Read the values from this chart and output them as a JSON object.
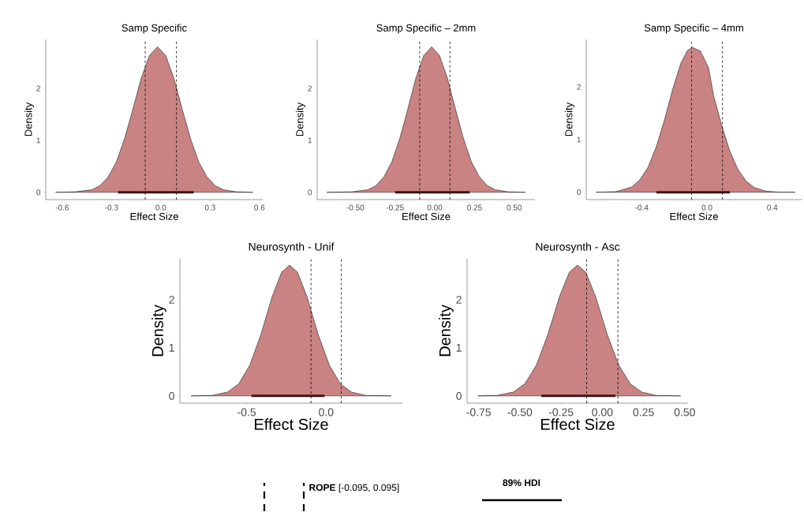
{
  "chart_data": [
    {
      "type": "area",
      "title": "Samp Specific",
      "xlabel": "Effect Size",
      "ylabel": "Density",
      "xlim": [
        -0.7,
        0.62
      ],
      "ylim": [
        -0.14,
        2.94
      ],
      "xticks": [
        {
          "value": -0.6,
          "label": "-0.6"
        },
        {
          "value": -0.3,
          "label": "-0.3"
        },
        {
          "value": 0,
          "label": "0.0"
        },
        {
          "value": 0.3,
          "label": "0.3"
        },
        {
          "value": 0.6,
          "label": "0.6"
        }
      ],
      "yticks": [
        0,
        1,
        2
      ],
      "series": [
        {
          "color": "#c98383",
          "x": [
            -0.64,
            -0.52,
            -0.42,
            -0.37,
            -0.32,
            -0.27,
            -0.22,
            -0.17,
            -0.12,
            -0.07,
            -0.02,
            0.03,
            0.08,
            0.13,
            0.18,
            0.23,
            0.28,
            0.33,
            0.38,
            0.46,
            0.56
          ],
          "values": [
            0,
            0.01,
            0.05,
            0.13,
            0.3,
            0.59,
            1.04,
            1.6,
            2.19,
            2.63,
            2.8,
            2.63,
            2.19,
            1.6,
            1.04,
            0.59,
            0.3,
            0.13,
            0.05,
            0.01,
            0
          ]
        },
        {
          "type": "line",
          "color": "#3b1515",
          "x": [
            -0.26,
            0.2
          ],
          "values": [
            0,
            0
          ]
        }
      ],
      "ref_lines": [
        {
          "axis": "x",
          "value": -0.095,
          "line_style": "dashed"
        },
        {
          "axis": "x",
          "value": 0.095,
          "line_style": "dashed"
        }
      ]
    },
    {
      "type": "area",
      "title": "Samp Specific – 2mm",
      "xlabel": "Effect Size",
      "ylabel": "Density",
      "xlim": [
        -0.74,
        0.63
      ],
      "ylim": [
        -0.14,
        2.94
      ],
      "xticks": [
        {
          "value": -0.5,
          "label": "-0.50"
        },
        {
          "value": -0.25,
          "label": "-0.25"
        },
        {
          "value": 0,
          "label": "0.00"
        },
        {
          "value": 0.25,
          "label": "0.25"
        },
        {
          "value": 0.5,
          "label": "0.50"
        }
      ],
      "yticks": [
        0,
        1,
        2
      ],
      "series": [
        {
          "color": "#c98383",
          "x": [
            -0.68,
            -0.52,
            -0.42,
            -0.37,
            -0.32,
            -0.27,
            -0.22,
            -0.17,
            -0.12,
            -0.07,
            -0.02,
            0.03,
            0.08,
            0.13,
            0.18,
            0.23,
            0.28,
            0.33,
            0.38,
            0.46,
            0.57
          ],
          "values": [
            0,
            0.01,
            0.05,
            0.13,
            0.3,
            0.59,
            1.04,
            1.6,
            2.19,
            2.63,
            2.8,
            2.63,
            2.19,
            1.6,
            1.04,
            0.59,
            0.3,
            0.13,
            0.05,
            0.01,
            0
          ]
        },
        {
          "type": "line",
          "color": "#3b1515",
          "x": [
            -0.25,
            0.22
          ],
          "values": [
            0,
            0
          ]
        }
      ],
      "ref_lines": [
        {
          "axis": "x",
          "value": -0.095,
          "line_style": "dashed"
        },
        {
          "axis": "x",
          "value": 0.095,
          "line_style": "dashed"
        }
      ]
    },
    {
      "type": "area",
      "title": "Samp Specific – 4mm",
      "xlabel": "Effect Size",
      "ylabel": "Density",
      "xlim": [
        -0.74,
        0.58
      ],
      "ylim": [
        -0.14,
        2.9
      ],
      "xticks": [
        {
          "value": -0.4,
          "label": "-0.4"
        },
        {
          "value": 0,
          "label": "0.0"
        },
        {
          "value": 0.4,
          "label": "0.4"
        }
      ],
      "yticks": [
        0,
        1,
        2
      ],
      "series": [
        {
          "color": "#c98383",
          "x": [
            -0.68,
            -0.56,
            -0.46,
            -0.41,
            -0.36,
            -0.31,
            -0.26,
            -0.21,
            -0.16,
            -0.12,
            -0.09,
            -0.04,
            0.01,
            0.04,
            0.09,
            0.14,
            0.19,
            0.24,
            0.29,
            0.36,
            0.45,
            0.54
          ],
          "values": [
            0,
            0.01,
            0.1,
            0.24,
            0.48,
            0.87,
            1.38,
            1.96,
            2.45,
            2.69,
            2.75,
            2.68,
            2.36,
            1.84,
            1.27,
            0.78,
            0.43,
            0.21,
            0.09,
            0.02,
            0,
            0
          ]
        },
        {
          "type": "line",
          "color": "#3b1515",
          "x": [
            -0.31,
            0.14
          ],
          "values": [
            0,
            0
          ]
        }
      ],
      "ref_lines": [
        {
          "axis": "x",
          "value": -0.095,
          "line_style": "dashed"
        },
        {
          "axis": "x",
          "value": 0.095,
          "line_style": "dashed"
        }
      ]
    },
    {
      "type": "area",
      "title": "Neurosynth - Unif",
      "xlabel": "Effect Size",
      "ylabel": "Density",
      "xlim": [
        -0.92,
        0.48
      ],
      "ylim": [
        -0.15,
        2.85
      ],
      "xticks": [
        {
          "value": -0.5,
          "label": "-0.5"
        },
        {
          "value": 0,
          "label": "0.0"
        }
      ],
      "yticks": [
        0,
        1,
        2
      ],
      "series": [
        {
          "color": "#c98383",
          "x": [
            -0.85,
            -0.72,
            -0.62,
            -0.55,
            -0.48,
            -0.41,
            -0.34,
            -0.28,
            -0.23,
            -0.18,
            -0.12,
            -0.05,
            0.02,
            0.09,
            0.16,
            0.25,
            0.41
          ],
          "values": [
            0,
            0.01,
            0.08,
            0.25,
            0.64,
            1.28,
            2.06,
            2.57,
            2.72,
            2.57,
            2.06,
            1.28,
            0.64,
            0.25,
            0.08,
            0.01,
            0
          ]
        },
        {
          "type": "line",
          "color": "#3b1515",
          "x": [
            -0.47,
            -0.01
          ],
          "values": [
            0,
            0
          ]
        }
      ],
      "ref_lines": [
        {
          "axis": "x",
          "value": -0.095,
          "line_style": "dashed"
        },
        {
          "axis": "x",
          "value": 0.095,
          "line_style": "dashed"
        }
      ]
    },
    {
      "type": "area",
      "title": "Neurosynth - Asc",
      "xlabel": "Effect Size",
      "ylabel": "Density",
      "xlim": [
        -0.82,
        0.52
      ],
      "ylim": [
        -0.15,
        2.85
      ],
      "xticks": [
        {
          "value": -0.75,
          "label": "-0.75"
        },
        {
          "value": -0.5,
          "label": "-0.50"
        },
        {
          "value": -0.25,
          "label": "-0.25"
        },
        {
          "value": 0,
          "label": "0.00"
        },
        {
          "value": 0.25,
          "label": "0.25"
        },
        {
          "value": 0.5,
          "label": "0.50"
        }
      ],
      "yticks": [
        0,
        1,
        2
      ],
      "series": [
        {
          "color": "#c98383",
          "x": [
            -0.755,
            -0.64,
            -0.54,
            -0.47,
            -0.4,
            -0.33,
            -0.26,
            -0.2,
            -0.15,
            -0.1,
            -0.04,
            0.03,
            0.1,
            0.17,
            0.24,
            0.33,
            0.475
          ],
          "values": [
            0,
            0.01,
            0.08,
            0.25,
            0.64,
            1.28,
            2.06,
            2.57,
            2.72,
            2.57,
            2.06,
            1.28,
            0.64,
            0.25,
            0.08,
            0.01,
            0
          ]
        },
        {
          "type": "line",
          "color": "#3b1515",
          "x": [
            -0.37,
            0.08
          ],
          "values": [
            0,
            0
          ]
        }
      ],
      "ref_lines": [
        {
          "axis": "x",
          "value": -0.095,
          "line_style": "dashed"
        },
        {
          "axis": "x",
          "value": 0.095,
          "line_style": "dashed"
        }
      ]
    },
    {
      "type": "other",
      "annotations": [
        "**ROPE** [-0.095, 0.095]",
        "89% HDI"
      ]
    }
  ]
}
